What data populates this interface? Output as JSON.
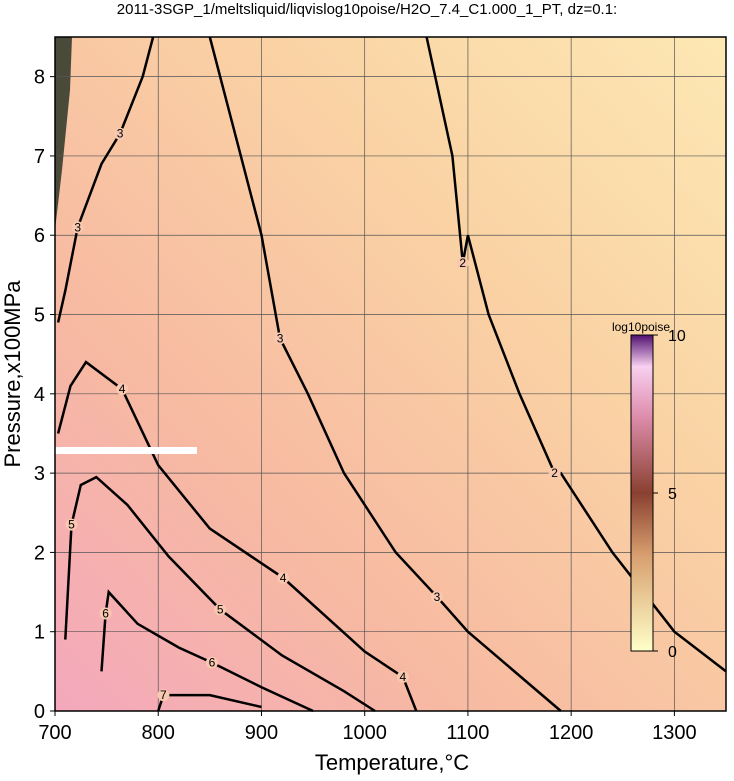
{
  "chart_data": {
    "type": "contour",
    "title": "2011-3SGP_1/meltsliquid/liqvislog10poise/H2O_7.4_C1.000_1_PT, dz=0.1:",
    "x_label": "Temperature,°C",
    "y_label": "Pressure,x100MPa",
    "xlim": [
      700,
      1350
    ],
    "ylim": [
      0,
      8.5
    ],
    "xticks": [
      700,
      800,
      900,
      1000,
      1100,
      1200,
      1300
    ],
    "yticks": [
      0,
      1,
      2,
      3,
      4,
      5,
      6,
      7,
      8
    ],
    "grid": true,
    "colorbar_label": "log10poise",
    "clim": [
      0,
      10
    ],
    "cticks": [
      0,
      5,
      10
    ],
    "contours": [
      {
        "level": 2,
        "x": [
          1060,
          1085,
          1095,
          1100,
          1120,
          1150,
          1184,
          1190,
          1240,
          1300,
          1350
        ],
        "y": [
          8.5,
          7,
          5.65,
          6,
          5,
          4,
          3.0,
          3,
          2,
          1,
          0.5
        ]
      },
      {
        "level": 3,
        "x": [
          850,
          870,
          900,
          918,
          945,
          980,
          1030,
          1070,
          1100,
          1190
        ],
        "y": [
          8.5,
          7.5,
          6,
          4.7,
          4,
          3,
          2,
          1.44,
          1,
          0
        ]
      },
      {
        "level": 3,
        "x": [
          795,
          785,
          763,
          745,
          722,
          710,
          703
        ],
        "y": [
          8.5,
          8,
          7.28,
          6.9,
          6.1,
          5.3,
          4.9
        ]
      },
      {
        "level": 4,
        "x": [
          703,
          715,
          730,
          765,
          800,
          850,
          921,
          1000,
          1037,
          1050
        ],
        "y": [
          3.5,
          4.1,
          4.4,
          4.06,
          3.1,
          2.3,
          1.68,
          0.75,
          0.43,
          0
        ]
      },
      {
        "level": 5,
        "x": [
          710,
          716,
          725,
          740,
          770,
          810,
          860,
          920,
          980,
          1010
        ],
        "y": [
          0.9,
          2.35,
          2.85,
          2.95,
          2.6,
          1.95,
          1.28,
          0.7,
          0.25,
          0
        ]
      },
      {
        "level": 6,
        "x": [
          745,
          749,
          752,
          780,
          820,
          852,
          900,
          950
        ],
        "y": [
          0.5,
          1.23,
          1.5,
          1.1,
          0.8,
          0.61,
          0.3,
          0
        ]
      },
      {
        "level": 7,
        "x": [
          800,
          805,
          850,
          900
        ],
        "y": [
          0,
          0.2,
          0.2,
          0.05
        ]
      }
    ]
  }
}
